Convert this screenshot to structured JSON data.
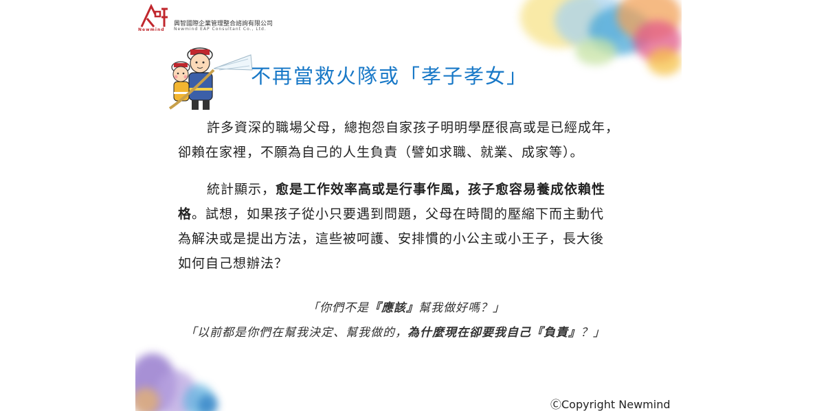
{
  "header": {
    "company_zh": "興智國際企業管理整合諮詢有限公司",
    "company_en": "Newmind EAP Consultant Co., Ltd.",
    "logo_text": "Newmind"
  },
  "title": "不再當救火隊或「孝子孝女」",
  "paragraph1": {
    "line1": "許多資深的職場父母，總抱怨自家孩子明明學歷很高或是已經成年，",
    "line2": "卻賴在家裡，不願為自己的人生負責（譬如求職、就業、成家等）。"
  },
  "paragraph2": {
    "line1_plain": "統計顯示，",
    "line1_bold": "愈是工作效率高或是行事作風，孩子愈容易養成依賴性",
    "line2_bold": "格",
    "line2_plain": "。試想，如果孩子從小只要遇到問題，父母在時間的壓縮下而主動代",
    "line3": "為解決或是提出方法，這些被呵護、安排慣的小公主或小王子，長大後",
    "line4": "如何自己想辦法？"
  },
  "quote1": {
    "part1": "「你們不是",
    "bold": "『應該』",
    "part2": "幫我做好嗎？」"
  },
  "quote2": {
    "part1": "「以前都是你們在幫我決定、幫我做的，",
    "bold1": "為什麼現在卻要我自己",
    "bold2": "『負責』",
    "part2": "？」"
  },
  "copyright": "ⒸCopyright Newmind"
}
